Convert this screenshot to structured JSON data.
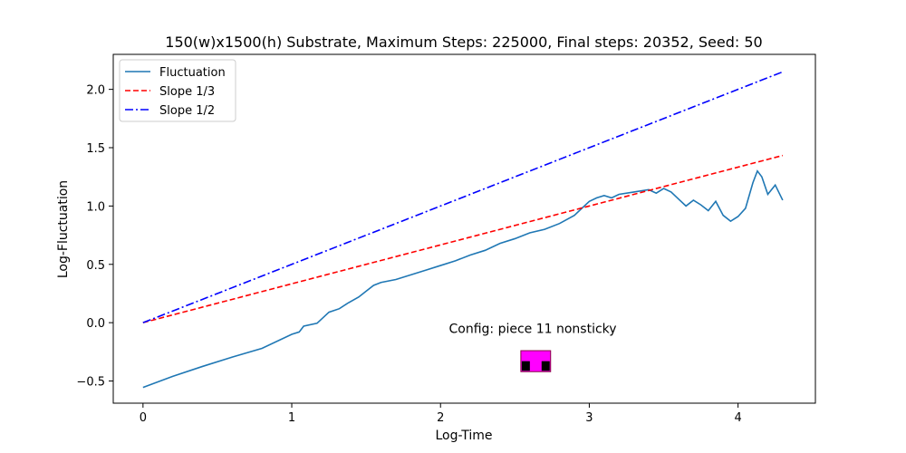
{
  "chart_data": {
    "type": "line",
    "title": "150(w)x1500(h) Substrate, Maximum Steps: 225000, Final steps: 20352, Seed: 50",
    "xlabel": "Log-Time",
    "ylabel": "Log-Fluctuation",
    "xlim": [
      -0.2,
      4.52
    ],
    "ylim": [
      -0.69,
      2.3
    ],
    "x_ticks": [
      0,
      1,
      2,
      3,
      4
    ],
    "x_tick_labels": [
      "0",
      "1",
      "2",
      "3",
      "4"
    ],
    "y_ticks": [
      -0.5,
      0.0,
      0.5,
      1.0,
      1.5,
      2.0
    ],
    "y_tick_labels": [
      "−0.5",
      "0.0",
      "0.5",
      "1.0",
      "1.5",
      "2.0"
    ],
    "grid": false,
    "legend_position": "top-left",
    "series": [
      {
        "name": "Fluctuation",
        "color": "#1f77b4",
        "style": "solid",
        "points": [
          [
            0,
            -0.555
          ],
          [
            0.2,
            -0.46
          ],
          [
            0.4,
            -0.375
          ],
          [
            0.6,
            -0.295
          ],
          [
            0.8,
            -0.22
          ],
          [
            1.0,
            -0.1
          ],
          [
            1.05,
            -0.08
          ],
          [
            1.08,
            -0.03
          ],
          [
            1.17,
            -0.005
          ],
          [
            1.25,
            0.09
          ],
          [
            1.32,
            0.12
          ],
          [
            1.38,
            0.17
          ],
          [
            1.45,
            0.22
          ],
          [
            1.5,
            0.27
          ],
          [
            1.55,
            0.32
          ],
          [
            1.6,
            0.345
          ],
          [
            1.7,
            0.37
          ],
          [
            1.8,
            0.41
          ],
          [
            1.9,
            0.45
          ],
          [
            2.0,
            0.49
          ],
          [
            2.1,
            0.53
          ],
          [
            2.2,
            0.58
          ],
          [
            2.3,
            0.62
          ],
          [
            2.4,
            0.68
          ],
          [
            2.5,
            0.72
          ],
          [
            2.6,
            0.77
          ],
          [
            2.7,
            0.8
          ],
          [
            2.8,
            0.85
          ],
          [
            2.9,
            0.92
          ],
          [
            2.95,
            0.98
          ],
          [
            3.0,
            1.04
          ],
          [
            3.05,
            1.07
          ],
          [
            3.1,
            1.09
          ],
          [
            3.15,
            1.07
          ],
          [
            3.2,
            1.1
          ],
          [
            3.3,
            1.12
          ],
          [
            3.4,
            1.14
          ],
          [
            3.45,
            1.11
          ],
          [
            3.5,
            1.15
          ],
          [
            3.55,
            1.12
          ],
          [
            3.6,
            1.06
          ],
          [
            3.65,
            1.0
          ],
          [
            3.7,
            1.05
          ],
          [
            3.75,
            1.01
          ],
          [
            3.8,
            0.96
          ],
          [
            3.85,
            1.04
          ],
          [
            3.9,
            0.92
          ],
          [
            3.95,
            0.87
          ],
          [
            4.0,
            0.91
          ],
          [
            4.05,
            0.98
          ],
          [
            4.1,
            1.2
          ],
          [
            4.13,
            1.3
          ],
          [
            4.16,
            1.25
          ],
          [
            4.2,
            1.1
          ],
          [
            4.25,
            1.18
          ],
          [
            4.3,
            1.05
          ]
        ]
      },
      {
        "name": "Slope 1/3",
        "color": "#ff0000",
        "style": "dashed",
        "points": [
          [
            0,
            0
          ],
          [
            4.3,
            1.4333
          ]
        ]
      },
      {
        "name": "Slope 1/2",
        "color": "#0000ff",
        "style": "dashdot",
        "points": [
          [
            0,
            0
          ],
          [
            4.3,
            2.15
          ]
        ]
      }
    ],
    "annotation": {
      "text": "Config:  piece 11 nonsticky",
      "x": 2.62,
      "y": -0.09
    },
    "inset_piece": {
      "label": "piece-11-icon",
      "x_range": [
        2.54,
        2.74
      ],
      "y_range": [
        -0.42,
        -0.24
      ],
      "fill_color": "#ff00ff",
      "block_color": "#000000"
    }
  }
}
